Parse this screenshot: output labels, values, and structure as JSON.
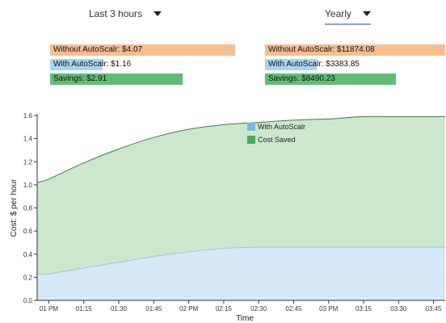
{
  "controls": {
    "time_range": "Last 3 hours",
    "period": "Yearly"
  },
  "summary_short": {
    "without": "Without AutoScalr: $4.07",
    "with": "With AutoScalr: $1.16",
    "savings": "Savings: $2.91"
  },
  "summary_long": {
    "without": "Without AutoScalr: $11874.08",
    "with": "With AutoScalr: $3383.85",
    "savings": "Savings: $8490.23"
  },
  "colors": {
    "with_fill": "#d4e8f8",
    "with_line": "#9cc6e6",
    "saved_fill": "#cbe8cd",
    "saved_line": "#3d7a4a",
    "legend_with": "#79b8e6",
    "legend_saved": "#4ca85d"
  },
  "chart_data": {
    "type": "area",
    "xlabel": "Time",
    "ylabel": "Cost: $ per hour",
    "ylim": [
      0,
      1.6
    ],
    "yticks": [
      "0.0",
      "0.2",
      "0.4",
      "0.6",
      "0.8",
      "1.0",
      "1.2",
      "1.4",
      "1.6"
    ],
    "xticks": [
      "01 PM",
      "01:15",
      "01:30",
      "01:45",
      "02 PM",
      "02:15",
      "02:30",
      "02:45",
      "03 PM",
      "03:15",
      "03:30",
      "03:45"
    ],
    "x": [
      "12:55",
      "13:00",
      "13:15",
      "13:30",
      "13:45",
      "14:00",
      "14:15",
      "14:30",
      "14:45",
      "15:00",
      "15:15",
      "15:30",
      "15:45",
      "15:50"
    ],
    "series": [
      {
        "name": "With AutoScalr",
        "values": [
          0.23,
          0.23,
          0.28,
          0.33,
          0.38,
          0.42,
          0.45,
          0.46,
          0.46,
          0.46,
          0.46,
          0.46,
          0.46,
          0.46
        ]
      },
      {
        "name": "Cost Saved",
        "values": [
          0.79,
          0.82,
          0.91,
          0.98,
          1.03,
          1.06,
          1.07,
          1.08,
          1.1,
          1.11,
          1.13,
          1.13,
          1.13,
          1.13
        ]
      }
    ],
    "legend_position": "top-center",
    "grid": false
  }
}
